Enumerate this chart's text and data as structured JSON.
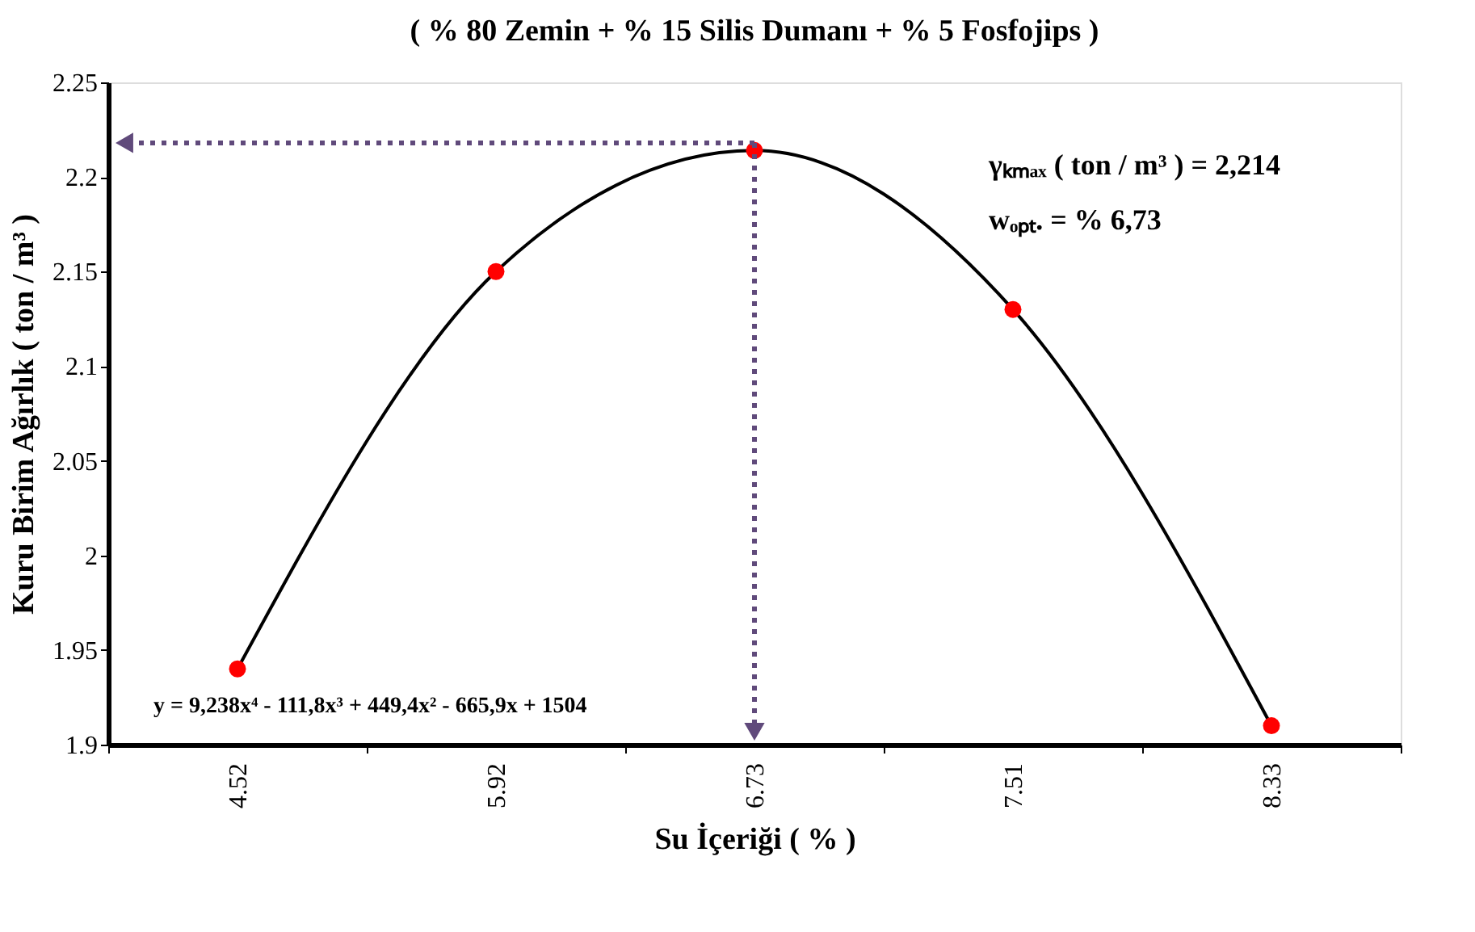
{
  "chart_data": {
    "type": "scatter",
    "title": "( % 80 Zemin + % 15 Silis Dumanı + % 5 Fosfojips )",
    "xlabel": "Su İçeriği ( % )",
    "ylabel": "Kuru Birim Ağırlık ( ton / m³ )",
    "categories": [
      "4.52",
      "5.92",
      "6.73",
      "7.51",
      "8.33"
    ],
    "ylim": [
      1.9,
      2.25
    ],
    "yticks": [
      1.9,
      1.95,
      2,
      2.05,
      2.1,
      2.15,
      2.2,
      2.25
    ],
    "series": [
      {
        "type": "line",
        "color": "#000000",
        "values": [
          1.94,
          2.15,
          2.214,
          2.13,
          1.91
        ]
      },
      {
        "color": "#ff0000",
        "marker": "circle",
        "values": [
          1.94,
          2.15,
          2.214,
          2.13,
          1.91
        ]
      }
    ],
    "ref_lines": [
      {
        "axis": "y",
        "value": 2.218,
        "label": null,
        "color": "#604a7b",
        "line_style": "dotted"
      },
      {
        "axis": "x",
        "value": "6.73",
        "label": null,
        "color": "#604a7b",
        "line_style": "dotted"
      }
    ],
    "annotations": [
      "γₖₘₐₓ ( ton / m³ ) = 2,214",
      "wₒₚₜ. =  % 6,73",
      "y = 9,238x⁴ - 111,8x³ + 449,4x² - 665,9x + 1504"
    ]
  }
}
